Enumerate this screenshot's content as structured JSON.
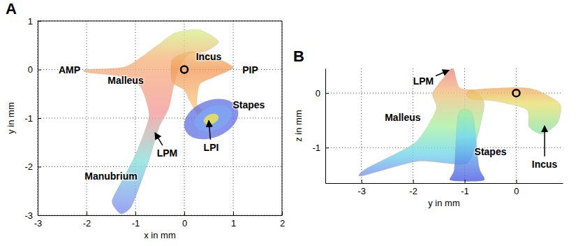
{
  "chart_data": [
    {
      "type": "scatter",
      "panel": "A",
      "xlabel": "x in mm",
      "ylabel": "y in mm",
      "xlim": [
        -3,
        2
      ],
      "xticks": [
        -3,
        -2,
        -1,
        0,
        1,
        2
      ],
      "ylim": [
        -3,
        1
      ],
      "yticks": [
        -3,
        -2,
        -1,
        0,
        1
      ],
      "grid": true,
      "x": [
        0
      ],
      "values": [
        0
      ],
      "marker": "circle",
      "color": "#000000",
      "annotations": [
        {
          "text": "AMP",
          "x": -2.35,
          "y": 0
        },
        {
          "text": "Malleus",
          "x": -1.2,
          "y": -0.22
        },
        {
          "text": "Incus",
          "x": 0.5,
          "y": 0.27
        },
        {
          "text": "PIP",
          "x": 1.35,
          "y": 0
        },
        {
          "text": "Stapes",
          "x": 1.32,
          "y": -0.72
        },
        {
          "text": "LPI",
          "x": 0.55,
          "y": -1.6,
          "arrow": [
            0.5,
            -1.05
          ]
        },
        {
          "text": "LPM",
          "x": -0.35,
          "y": -1.72,
          "arrow": [
            -0.6,
            -1.3
          ]
        },
        {
          "text": "Manubrium",
          "x": -1.5,
          "y": -2.2
        }
      ]
    },
    {
      "type": "scatter",
      "panel": "B",
      "xlabel": "y in mm",
      "ylabel": "z in mm",
      "xlim": [
        -3.7,
        0.9
      ],
      "xticks": [
        -3,
        -2,
        -1,
        0
      ],
      "ylim": [
        -1.65,
        0.45
      ],
      "yticks": [
        -1,
        0
      ],
      "grid": true,
      "x": [
        0
      ],
      "values": [
        0
      ],
      "marker": "circle",
      "color": "#000000",
      "annotations": [
        {
          "text": "LPM",
          "x": -1.8,
          "y": 0.22,
          "arrow": [
            -1.3,
            0.42
          ]
        },
        {
          "text": "Malleus",
          "x": -2.2,
          "y": -0.45
        },
        {
          "text": "Stapes",
          "x": -0.5,
          "y": -1.08
        },
        {
          "text": "Incus",
          "x": 0.55,
          "y": -1.3,
          "arrow": [
            0.55,
            -0.6
          ]
        }
      ]
    }
  ]
}
